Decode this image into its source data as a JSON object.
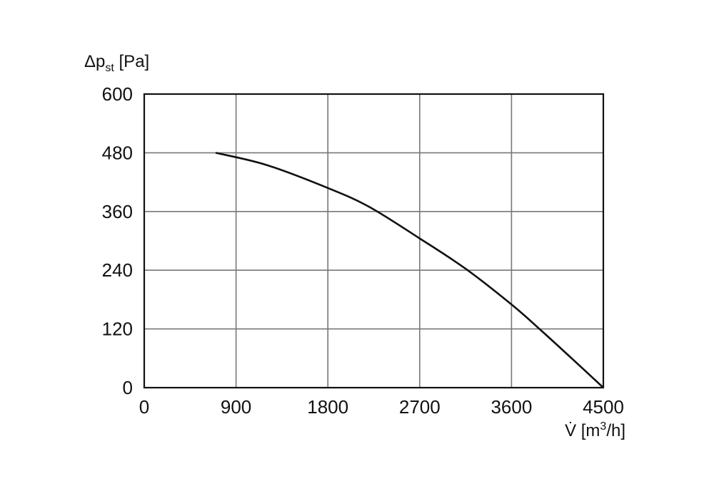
{
  "chart_data": {
    "type": "line",
    "xlabel": "V̇ [m³/h]",
    "ylabel": "Δpst [Pa]",
    "xlim": [
      0,
      4500
    ],
    "ylim": [
      0,
      600
    ],
    "x_ticks": [
      "0",
      "900",
      "1800",
      "2700",
      "3600",
      "4500"
    ],
    "y_ticks": [
      "0",
      "120",
      "240",
      "360",
      "480",
      "600"
    ],
    "grid": true,
    "series": [
      {
        "x": [
          700,
          1200,
          1800,
          2200,
          2700,
          3150,
          3600,
          3900,
          4200,
          4500
        ],
        "y": [
          480,
          455,
          408,
          370,
          305,
          243,
          170,
          115,
          58,
          0
        ]
      }
    ]
  }
}
